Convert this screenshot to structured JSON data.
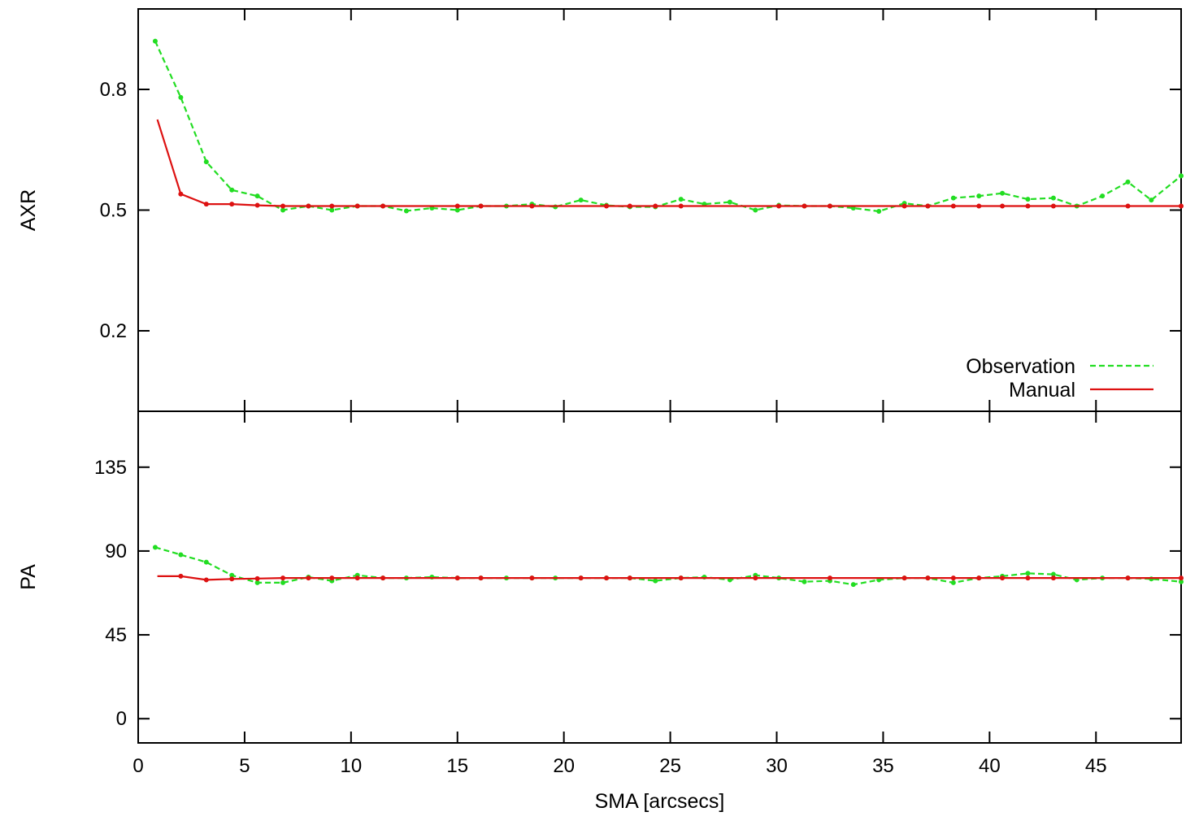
{
  "chart_data": [
    {
      "type": "line",
      "ylabel": "AXR",
      "xlim": [
        0,
        49
      ],
      "ylim": [
        0.0,
        1.0
      ],
      "yticks": [
        "0.2",
        "0.5",
        "0.8"
      ],
      "ytick_values": [
        0.2,
        0.5,
        0.8
      ],
      "grid": false,
      "legend_placement": "bottom-right",
      "series": [
        {
          "name": "Observation",
          "color": "#22dd22",
          "style": "dashed",
          "x": [
            0.8,
            2.0,
            3.2,
            4.4,
            5.6,
            6.8,
            8.0,
            9.1,
            10.3,
            11.5,
            12.6,
            13.8,
            15.0,
            16.1,
            17.3,
            18.5,
            19.6,
            20.8,
            22.0,
            23.1,
            24.3,
            25.5,
            26.6,
            27.8,
            29.0,
            30.1,
            31.3,
            32.5,
            33.6,
            34.8,
            36.0,
            37.1,
            38.3,
            39.5,
            40.6,
            41.8,
            43.0,
            44.1,
            45.3,
            46.5,
            47.6,
            49.0
          ],
          "y": [
            0.92,
            0.78,
            0.62,
            0.55,
            0.535,
            0.5,
            0.51,
            0.5,
            0.51,
            0.51,
            0.498,
            0.505,
            0.5,
            0.51,
            0.51,
            0.515,
            0.508,
            0.525,
            0.512,
            0.508,
            0.508,
            0.527,
            0.515,
            0.52,
            0.5,
            0.512,
            0.51,
            0.51,
            0.505,
            0.497,
            0.517,
            0.51,
            0.53,
            0.535,
            0.542,
            0.527,
            0.53,
            0.51,
            0.535,
            0.57,
            0.525,
            0.585
          ]
        },
        {
          "name": "Manual",
          "color": "#dd1111",
          "style": "solid",
          "x": [
            0.9,
            2.0,
            3.2,
            4.4,
            5.6,
            6.8,
            8.0,
            9.1,
            10.3,
            11.5,
            15.0,
            16.1,
            18.5,
            22.0,
            23.1,
            24.3,
            25.5,
            30.1,
            31.3,
            32.5,
            36.0,
            37.1,
            38.3,
            39.5,
            40.6,
            41.8,
            43.0,
            46.5,
            49.0
          ],
          "y": [
            0.725,
            0.54,
            0.515,
            0.515,
            0.512,
            0.51,
            0.51,
            0.51,
            0.51,
            0.51,
            0.51,
            0.51,
            0.51,
            0.51,
            0.51,
            0.51,
            0.51,
            0.51,
            0.51,
            0.51,
            0.51,
            0.51,
            0.51,
            0.51,
            0.51,
            0.51,
            0.51,
            0.51,
            0.51
          ]
        }
      ]
    },
    {
      "type": "line",
      "ylabel": "PA",
      "xlabel": "SMA [arcsecs]",
      "xlim": [
        0,
        49
      ],
      "ylim": [
        -13,
        165
      ],
      "yticks": [
        "0",
        "45",
        "90",
        "135"
      ],
      "ytick_values": [
        0,
        45,
        90,
        135
      ],
      "xticks": [
        "0",
        "5",
        "10",
        "15",
        "20",
        "25",
        "30",
        "35",
        "40",
        "45"
      ],
      "xtick_values": [
        0,
        5,
        10,
        15,
        20,
        25,
        30,
        35,
        40,
        45
      ],
      "grid": false,
      "series": [
        {
          "name": "Observation",
          "color": "#22dd22",
          "style": "dashed",
          "x": [
            0.8,
            2.0,
            3.2,
            4.4,
            5.6,
            6.8,
            8.0,
            9.1,
            10.3,
            11.5,
            12.6,
            13.8,
            15.0,
            16.1,
            17.3,
            18.5,
            19.6,
            20.8,
            22.0,
            23.1,
            24.3,
            25.5,
            26.6,
            27.8,
            29.0,
            30.1,
            31.3,
            32.5,
            33.6,
            34.8,
            36.0,
            37.1,
            38.3,
            39.5,
            40.6,
            41.8,
            43.0,
            44.1,
            45.3,
            46.5,
            47.6,
            49.0
          ],
          "y": [
            92,
            88,
            84,
            77,
            73,
            73,
            76,
            74,
            77,
            75.5,
            75.5,
            76,
            75.5,
            75.5,
            75.5,
            75.5,
            75.5,
            75.5,
            75.5,
            75.5,
            74,
            75.5,
            76,
            74.5,
            77,
            75.5,
            73.5,
            74,
            72,
            74.5,
            75.5,
            75.5,
            73,
            75.5,
            76.5,
            78,
            77.5,
            74.5,
            75.5,
            75.5,
            75,
            73.5
          ]
        },
        {
          "name": "Manual",
          "color": "#dd1111",
          "style": "solid",
          "x": [
            0.9,
            2.0,
            3.2,
            4.4,
            5.6,
            6.8,
            8.0,
            9.1,
            10.3,
            11.5,
            15.0,
            16.1,
            18.5,
            20.8,
            22.0,
            23.1,
            25.5,
            29.0,
            32.5,
            36.0,
            37.1,
            38.3,
            39.5,
            40.6,
            41.8,
            43.0,
            46.5,
            49.0
          ],
          "y": [
            76.5,
            76.5,
            74.5,
            75,
            75.2,
            75.5,
            75.5,
            75.5,
            75.5,
            75.5,
            75.5,
            75.5,
            75.5,
            75.5,
            75.5,
            75.5,
            75.5,
            75.5,
            75.5,
            75.5,
            75.5,
            75.5,
            75.5,
            75.5,
            75.5,
            75.5,
            75.5,
            75.5
          ]
        }
      ]
    }
  ]
}
